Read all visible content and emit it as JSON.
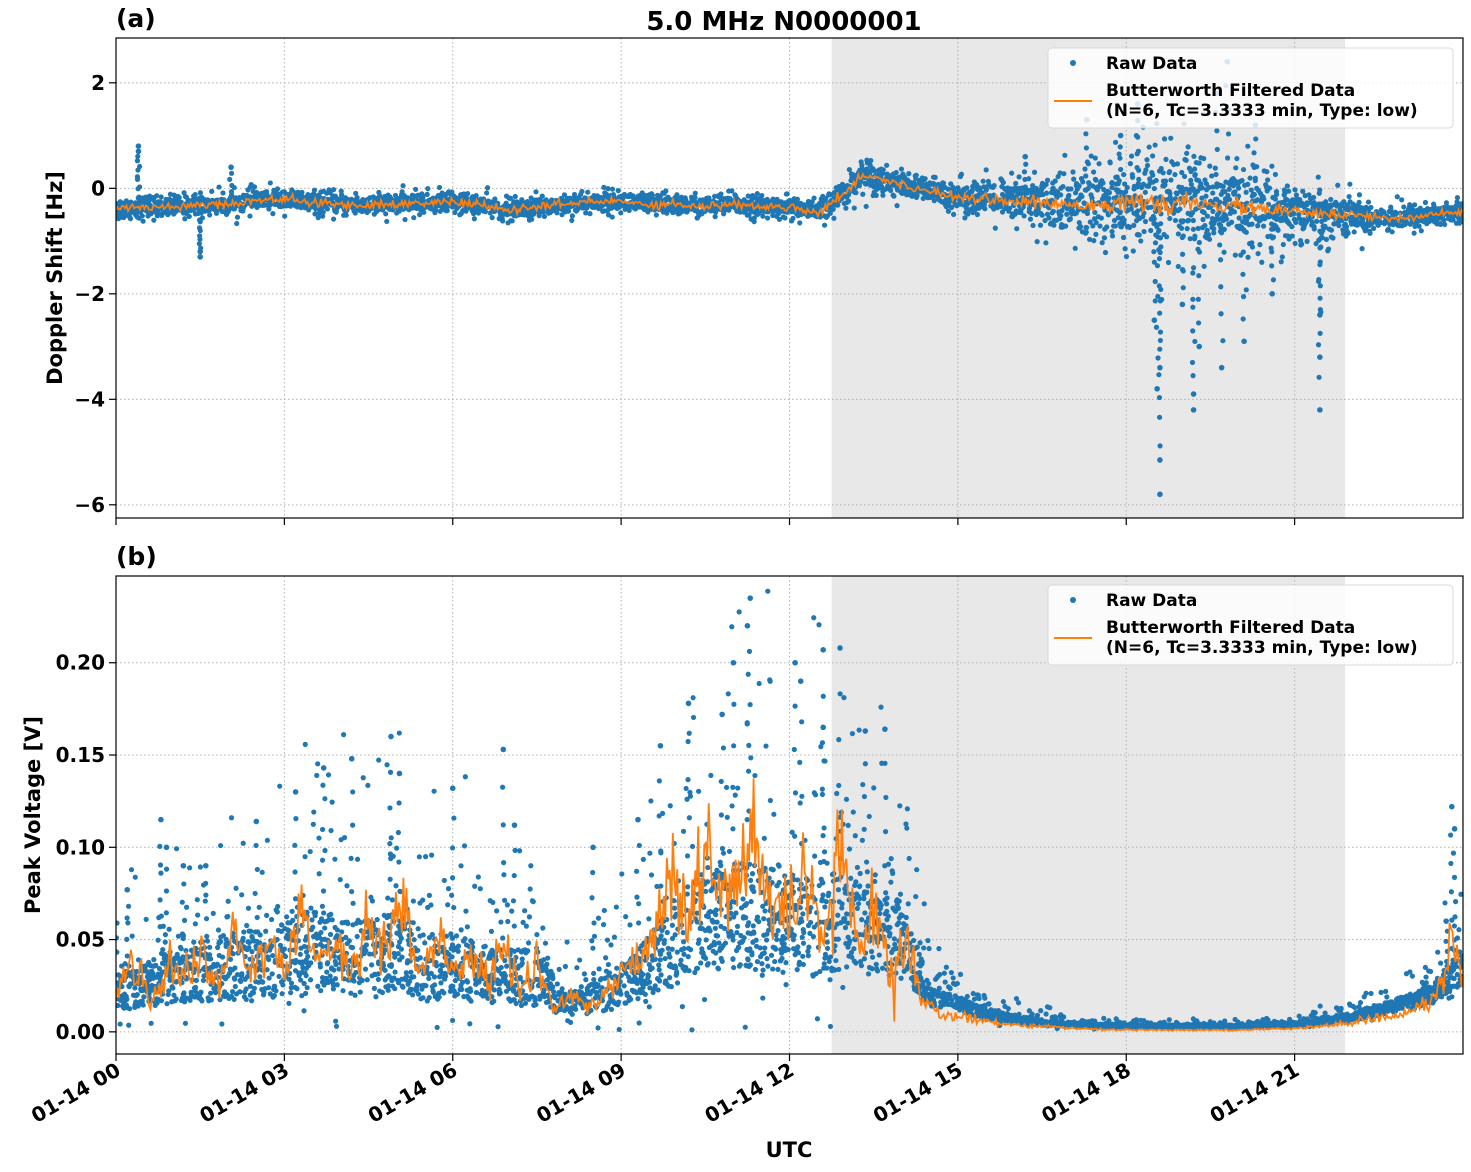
{
  "figure": {
    "title": "5.0 MHz N0000001",
    "xlabel": "UTC"
  },
  "colors": {
    "raw": "#1f77b4",
    "filtered": "#ff7f0e",
    "night_shade": "#e8e8e8",
    "grid": "#b0b0b0"
  },
  "legend": {
    "raw_label": "Raw Data",
    "filtered_label_line1": "Butterworth Filtered Data",
    "filtered_label_line2": "(N=6, Tc=3.3333 min, Type: low)"
  },
  "chart_data": [
    {
      "type": "scatter",
      "panel_label": "(a)",
      "ylabel": "Doppler Shift [Hz]",
      "xlim_hours": [
        0,
        24
      ],
      "ylim": [
        -6.25,
        2.85
      ],
      "yticks": [
        2,
        0,
        -2,
        -4,
        -6
      ],
      "ytick_labels": [
        "2",
        "0",
        "−2",
        "−4",
        "−6"
      ],
      "xticks_hours": [
        0,
        3,
        6,
        9,
        12,
        15,
        18,
        21
      ],
      "xtick_labels": [
        "01-14 00",
        "01-14 03",
        "01-14 06",
        "01-14 09",
        "01-14 12",
        "01-14 15",
        "01-14 18",
        "01-14 21"
      ],
      "shaded_span_hours": [
        12.75,
        21.9
      ],
      "grid": true,
      "legend_position": "upper-right",
      "series": [
        {
          "name": "Raw Data",
          "style": "points",
          "x_hours": [
            0,
            0.5,
            1,
            1.5,
            2,
            2.5,
            3,
            3.5,
            4,
            4.5,
            5,
            5.5,
            6,
            6.5,
            7,
            7.5,
            8,
            8.5,
            9,
            9.5,
            10,
            10.5,
            11,
            11.5,
            12,
            12.5,
            12.75,
            13,
            13.3,
            13.6,
            14,
            14.5,
            15,
            15.5,
            16,
            16.5,
            17,
            17.5,
            18,
            18.5,
            19,
            19.5,
            20,
            20.5,
            21,
            21.5,
            22,
            22.5,
            23,
            23.5,
            24
          ],
          "y_center": [
            -0.4,
            -0.35,
            -0.35,
            -0.3,
            -0.3,
            -0.22,
            -0.2,
            -0.28,
            -0.3,
            -0.32,
            -0.3,
            -0.28,
            -0.25,
            -0.32,
            -0.42,
            -0.35,
            -0.3,
            -0.25,
            -0.25,
            -0.3,
            -0.3,
            -0.35,
            -0.3,
            -0.35,
            -0.35,
            -0.45,
            -0.3,
            -0.05,
            0.25,
            0.2,
            0.05,
            -0.05,
            -0.15,
            -0.2,
            -0.25,
            -0.28,
            -0.3,
            -0.3,
            -0.28,
            -0.3,
            -0.3,
            -0.32,
            -0.35,
            -0.4,
            -0.45,
            -0.5,
            -0.5,
            -0.55,
            -0.55,
            -0.5,
            -0.45
          ],
          "y_spread": [
            0.25,
            0.25,
            0.25,
            0.25,
            0.25,
            0.25,
            0.25,
            0.25,
            0.25,
            0.25,
            0.25,
            0.25,
            0.25,
            0.25,
            0.25,
            0.25,
            0.25,
            0.25,
            0.25,
            0.25,
            0.25,
            0.25,
            0.25,
            0.25,
            0.25,
            0.25,
            0.3,
            0.35,
            0.4,
            0.35,
            0.3,
            0.3,
            0.35,
            0.45,
            0.55,
            0.7,
            0.85,
            1.1,
            1.3,
            1.35,
            1.3,
            1.2,
            1.1,
            0.9,
            0.75,
            0.6,
            0.45,
            0.35,
            0.3,
            0.3,
            0.3
          ],
          "outliers": [
            [
              0.4,
              0.8
            ],
            [
              0.4,
              0.7
            ],
            [
              1.5,
              -1.2
            ],
            [
              1.5,
              -1.3
            ],
            [
              2.05,
              0.4
            ],
            [
              16.2,
              0.6
            ],
            [
              17.3,
              1.3
            ],
            [
              18.55,
              -3.8
            ],
            [
              18.6,
              -5.15
            ],
            [
              18.6,
              -5.8
            ],
            [
              18.6,
              -3.4
            ],
            [
              19.2,
              -4.2
            ],
            [
              19.2,
              -3.9
            ],
            [
              19.3,
              -3.0
            ],
            [
              19.7,
              -3.4
            ],
            [
              19.8,
              2.4
            ],
            [
              20.1,
              -2.9
            ],
            [
              21.45,
              -4.2
            ],
            [
              21.45,
              -3.2
            ],
            [
              21.45,
              -2.4
            ],
            [
              18.5,
              -2.5
            ],
            [
              19.0,
              -2.2
            ],
            [
              20.6,
              -2.0
            ],
            [
              19.6,
              1.8
            ],
            [
              18.2,
              1.6
            ],
            [
              17.9,
              1.0
            ],
            [
              20.3,
              1.2
            ]
          ]
        },
        {
          "name": "Butterworth Filtered Data (N=6, Tc=3.3333 min, Type: low)",
          "style": "line",
          "x_hours": [
            0,
            0.5,
            1,
            1.5,
            2,
            2.5,
            3,
            3.5,
            4,
            4.5,
            5,
            5.5,
            6,
            6.5,
            7,
            7.5,
            8,
            8.5,
            9,
            9.5,
            10,
            10.5,
            11,
            11.5,
            12,
            12.5,
            12.75,
            13,
            13.3,
            13.6,
            14,
            14.5,
            15,
            15.5,
            16,
            16.5,
            17,
            17.5,
            18,
            18.5,
            19,
            19.5,
            20,
            20.5,
            21,
            21.5,
            22,
            22.5,
            23,
            23.5,
            24
          ],
          "values": [
            -0.4,
            -0.35,
            -0.35,
            -0.3,
            -0.3,
            -0.22,
            -0.2,
            -0.28,
            -0.3,
            -0.32,
            -0.3,
            -0.28,
            -0.25,
            -0.32,
            -0.42,
            -0.35,
            -0.3,
            -0.25,
            -0.25,
            -0.3,
            -0.3,
            -0.35,
            -0.3,
            -0.35,
            -0.35,
            -0.45,
            -0.3,
            -0.05,
            0.25,
            0.2,
            0.05,
            -0.05,
            -0.15,
            -0.2,
            -0.25,
            -0.28,
            -0.3,
            -0.3,
            -0.28,
            -0.3,
            -0.3,
            -0.32,
            -0.35,
            -0.4,
            -0.45,
            -0.5,
            -0.5,
            -0.55,
            -0.55,
            -0.5,
            -0.45
          ]
        }
      ]
    },
    {
      "type": "scatter",
      "panel_label": "(b)",
      "ylabel": "Peak Voltage [V]",
      "xlim_hours": [
        0,
        24
      ],
      "ylim": [
        -0.012,
        0.247
      ],
      "yticks": [
        0.0,
        0.05,
        0.1,
        0.15,
        0.2
      ],
      "ytick_labels": [
        "0.00",
        "0.05",
        "0.10",
        "0.15",
        "0.20"
      ],
      "xticks_hours": [
        0,
        3,
        6,
        9,
        12,
        15,
        18,
        21
      ],
      "xtick_labels": [
        "01-14 00",
        "01-14 03",
        "01-14 06",
        "01-14 09",
        "01-14 12",
        "01-14 15",
        "01-14 18",
        "01-14 21"
      ],
      "shaded_span_hours": [
        12.75,
        21.9
      ],
      "grid": true,
      "legend_position": "upper-right",
      "series": [
        {
          "name": "Raw Data",
          "style": "points",
          "x_hours": [
            0,
            0.5,
            1,
            1.5,
            2,
            2.5,
            3,
            3.5,
            4,
            4.5,
            5,
            5.5,
            6,
            6.5,
            7,
            7.5,
            8,
            8.5,
            9,
            9.5,
            10,
            10.5,
            11,
            11.5,
            12,
            12.5,
            13,
            13.5,
            14,
            14.5,
            15,
            15.5,
            16,
            16.5,
            17,
            18,
            19,
            20,
            21,
            21.5,
            22,
            22.5,
            23,
            23.5,
            24
          ],
          "y_center": [
            0.022,
            0.025,
            0.03,
            0.032,
            0.035,
            0.036,
            0.042,
            0.045,
            0.04,
            0.04,
            0.045,
            0.035,
            0.035,
            0.032,
            0.03,
            0.03,
            0.015,
            0.018,
            0.025,
            0.035,
            0.05,
            0.06,
            0.065,
            0.06,
            0.06,
            0.055,
            0.06,
            0.055,
            0.05,
            0.02,
            0.015,
            0.01,
            0.007,
            0.005,
            0.004,
            0.003,
            0.003,
            0.003,
            0.004,
            0.006,
            0.008,
            0.012,
            0.016,
            0.022,
            0.035
          ],
          "y_spread": [
            0.025,
            0.03,
            0.035,
            0.04,
            0.045,
            0.05,
            0.055,
            0.06,
            0.055,
            0.05,
            0.06,
            0.05,
            0.045,
            0.04,
            0.04,
            0.04,
            0.015,
            0.02,
            0.03,
            0.045,
            0.06,
            0.07,
            0.08,
            0.085,
            0.075,
            0.07,
            0.075,
            0.06,
            0.055,
            0.015,
            0.01,
            0.008,
            0.005,
            0.004,
            0.003,
            0.002,
            0.002,
            0.002,
            0.003,
            0.004,
            0.005,
            0.008,
            0.01,
            0.015,
            0.025
          ],
          "outliers": [
            [
              0.2,
              0.077
            ],
            [
              0.8,
              0.115
            ],
            [
              0.9,
              0.1
            ],
            [
              2.5,
              0.114
            ],
            [
              3.7,
              0.143
            ],
            [
              4.2,
              0.148
            ],
            [
              4.9,
              0.16
            ],
            [
              5.05,
              0.14
            ],
            [
              6.9,
              0.153
            ],
            [
              6.0,
              0.132
            ],
            [
              7.1,
              0.112
            ],
            [
              9.7,
              0.155
            ],
            [
              10.2,
              0.178
            ],
            [
              10.8,
              0.172
            ],
            [
              11.3,
              0.235
            ],
            [
              11.25,
              0.22
            ],
            [
              11.0,
              0.2
            ],
            [
              12.1,
              0.2
            ],
            [
              12.2,
              0.19
            ],
            [
              12.6,
              0.207
            ],
            [
              12.9,
              0.208
            ],
            [
              12.6,
              0.165
            ],
            [
              13.35,
              0.163
            ],
            [
              13.7,
              0.164
            ],
            [
              23.8,
              0.122
            ],
            [
              23.85,
              0.11
            ],
            [
              23.7,
              0.06
            ],
            [
              1.2,
              0.09
            ],
            [
              1.6,
              0.09
            ],
            [
              3.2,
              0.13
            ],
            [
              8.5,
              0.1
            ],
            [
              9.3,
              0.115
            ]
          ]
        },
        {
          "name": "Butterworth Filtered Data (N=6, Tc=3.3333 min, Type: low)",
          "style": "line",
          "x_hours": [
            0,
            0.3,
            0.6,
            0.9,
            1.2,
            1.5,
            1.8,
            2.1,
            2.4,
            2.7,
            3.0,
            3.3,
            3.6,
            3.9,
            4.2,
            4.5,
            4.8,
            5.1,
            5.4,
            5.7,
            6.0,
            6.3,
            6.6,
            6.9,
            7.2,
            7.5,
            7.8,
            8.1,
            8.4,
            8.7,
            9.0,
            9.3,
            9.6,
            9.9,
            10.2,
            10.5,
            10.8,
            11.1,
            11.4,
            11.7,
            12.0,
            12.3,
            12.6,
            12.9,
            13.2,
            13.5,
            13.8,
            14.1,
            14.4,
            14.7,
            15.0,
            15.5,
            16,
            17,
            18,
            19,
            20,
            21,
            21.5,
            22,
            22.5,
            23,
            23.5,
            23.8,
            24
          ],
          "values": [
            0.02,
            0.045,
            0.015,
            0.035,
            0.03,
            0.045,
            0.025,
            0.055,
            0.03,
            0.045,
            0.035,
            0.06,
            0.04,
            0.05,
            0.03,
            0.06,
            0.045,
            0.07,
            0.03,
            0.05,
            0.03,
            0.045,
            0.025,
            0.05,
            0.02,
            0.04,
            0.01,
            0.02,
            0.015,
            0.02,
            0.035,
            0.04,
            0.05,
            0.09,
            0.06,
            0.1,
            0.07,
            0.08,
            0.105,
            0.065,
            0.06,
            0.08,
            0.045,
            0.1,
            0.05,
            0.065,
            0.03,
            0.05,
            0.015,
            0.01,
            0.008,
            0.006,
            0.004,
            0.002,
            0.001,
            0.001,
            0.001,
            0.002,
            0.003,
            0.005,
            0.008,
            0.01,
            0.018,
            0.045,
            0.03
          ]
        }
      ]
    }
  ]
}
